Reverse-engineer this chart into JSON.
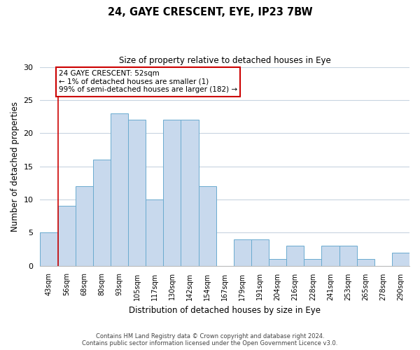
{
  "title": "24, GAYE CRESCENT, EYE, IP23 7BW",
  "subtitle": "Size of property relative to detached houses in Eye",
  "xlabel": "Distribution of detached houses by size in Eye",
  "ylabel": "Number of detached properties",
  "categories": [
    "43sqm",
    "56sqm",
    "68sqm",
    "80sqm",
    "93sqm",
    "105sqm",
    "117sqm",
    "130sqm",
    "142sqm",
    "154sqm",
    "167sqm",
    "179sqm",
    "191sqm",
    "204sqm",
    "216sqm",
    "228sqm",
    "241sqm",
    "253sqm",
    "265sqm",
    "278sqm",
    "290sqm"
  ],
  "values": [
    5,
    9,
    12,
    16,
    23,
    22,
    10,
    22,
    22,
    12,
    0,
    4,
    4,
    1,
    3,
    1,
    3,
    3,
    1,
    0,
    2
  ],
  "bar_color": "#c8d9ed",
  "bar_edge_color": "#6aabcf",
  "ylim": [
    0,
    30
  ],
  "yticks": [
    0,
    5,
    10,
    15,
    20,
    25,
    30
  ],
  "annotation_line1": "24 GAYE CRESCENT: 52sqm",
  "annotation_line2": "← 1% of detached houses are smaller (1)",
  "annotation_line3": "99% of semi-detached houses are larger (182) →",
  "annotation_box_color": "#ffffff",
  "annotation_box_edge_color": "#cc0000",
  "ref_line_color": "#cc0000",
  "footer_line1": "Contains HM Land Registry data © Crown copyright and database right 2024.",
  "footer_line2": "Contains public sector information licensed under the Open Government Licence v3.0.",
  "background_color": "#ffffff",
  "grid_color": "#c8d4e0"
}
